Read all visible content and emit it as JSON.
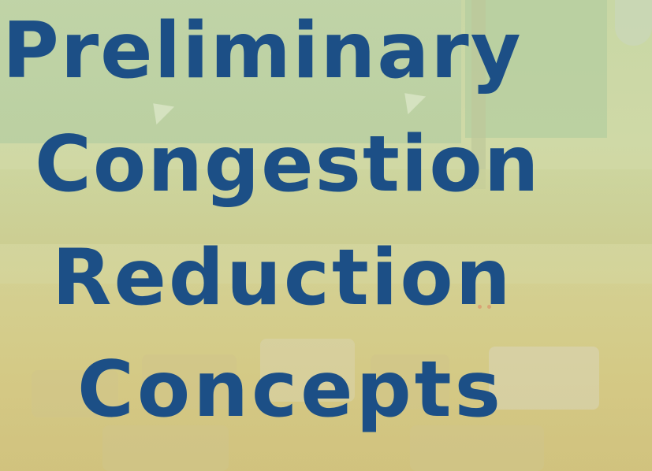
{
  "slide": {
    "title_lines": [
      "Preliminary",
      "Congestion",
      "Reduction",
      "Concepts"
    ],
    "title_color": "#1c4f86",
    "background_description_colors": [
      "#c8d7a5",
      "#d6c885"
    ]
  }
}
